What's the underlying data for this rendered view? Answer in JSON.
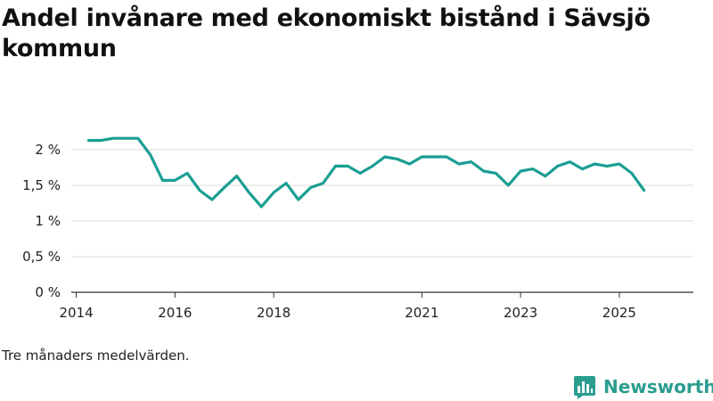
{
  "title": "Andel invånare med ekonomiskt bistånd i Sävsjö kommun",
  "note": "Tre månaders medelvärden.",
  "brand": {
    "name": "Newsworthy",
    "icon": "bar-chart-logo-icon"
  },
  "colors": {
    "line": "#1a9e93",
    "grid": "#dddddd",
    "axis": "#333333",
    "brand": "#2a9d8f"
  },
  "chart_data": {
    "type": "line",
    "title": "Andel invånare med ekonomiskt bistånd i Sävsjö kommun",
    "xlabel": "",
    "ylabel": "",
    "ylim": [
      0,
      2.5
    ],
    "xlim": [
      2013.9,
      2026.5
    ],
    "grid": true,
    "yticks": [
      {
        "value": 0,
        "label": "0 %"
      },
      {
        "value": 0.5,
        "label": "0,5 %"
      },
      {
        "value": 1,
        "label": "1 %"
      },
      {
        "value": 1.5,
        "label": "1,5 %"
      },
      {
        "value": 2,
        "label": "2 %"
      }
    ],
    "xticks": [
      {
        "value": 2014,
        "label": "2014"
      },
      {
        "value": 2016,
        "label": "2016"
      },
      {
        "value": 2018,
        "label": "2018"
      },
      {
        "value": 2021,
        "label": "2021"
      },
      {
        "value": 2023,
        "label": "2023"
      },
      {
        "value": 2025,
        "label": "2025"
      }
    ],
    "series": [
      {
        "name": "Andel invånare med ekonomiskt bistånd",
        "x": [
          2014.25,
          2014.5,
          2014.75,
          2015.0,
          2015.25,
          2015.5,
          2015.75,
          2016.0,
          2016.25,
          2016.5,
          2016.75,
          2017.0,
          2017.25,
          2017.5,
          2017.75,
          2018.0,
          2018.25,
          2018.5,
          2018.75,
          2019.0,
          2019.25,
          2019.5,
          2019.75,
          2020.0,
          2020.25,
          2020.5,
          2020.75,
          2021.0,
          2021.25,
          2021.5,
          2021.75,
          2022.0,
          2022.25,
          2022.5,
          2022.75,
          2023.0,
          2023.25,
          2023.5,
          2023.75,
          2024.0,
          2024.25,
          2024.5,
          2024.75,
          2025.0,
          2025.25,
          2025.5
        ],
        "values": [
          2.13,
          2.13,
          2.16,
          2.16,
          2.16,
          1.93,
          1.57,
          1.57,
          1.67,
          1.43,
          1.3,
          1.47,
          1.63,
          1.4,
          1.2,
          1.4,
          1.53,
          1.3,
          1.47,
          1.53,
          1.77,
          1.77,
          1.67,
          1.77,
          1.9,
          1.87,
          1.8,
          1.9,
          1.9,
          1.9,
          1.8,
          1.83,
          1.7,
          1.67,
          1.5,
          1.7,
          1.73,
          1.63,
          1.77,
          1.83,
          1.73,
          1.8,
          1.77,
          1.8,
          1.67,
          1.43
        ]
      }
    ]
  }
}
